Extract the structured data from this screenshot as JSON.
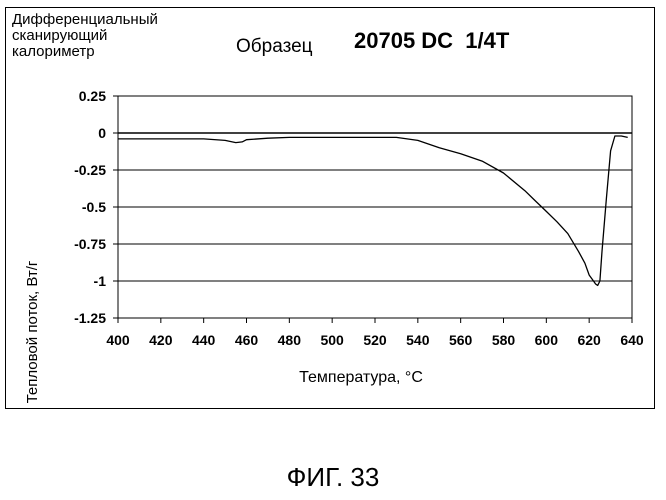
{
  "chart_data": {
    "type": "line",
    "title_lines": [
      "Дифференциальный",
      "сканирующий",
      "калориметр"
    ],
    "sample_label": "Образец",
    "sample_id": "20705 DC  1/4T",
    "xlabel": "Температура, °C",
    "ylabel": "Тепловой поток, Вт/г",
    "xlim": [
      400,
      640
    ],
    "ylim": [
      -1.25,
      0.25
    ],
    "x_ticks": [
      "400",
      "420",
      "440",
      "460",
      "480",
      "500",
      "520",
      "540",
      "560",
      "580",
      "600",
      "620",
      "640"
    ],
    "y_ticks": [
      "0.25",
      "0",
      "-0.25",
      "-0.5",
      "-0.75",
      "-1",
      "-1.25"
    ],
    "grid": "horizontal",
    "reference_line": {
      "y": 0
    },
    "series": [
      {
        "x": [
          400,
          420,
          440,
          450,
          455,
          458,
          460,
          470,
          480,
          500,
          520,
          530,
          540,
          550,
          560,
          570,
          580,
          590,
          595,
          600,
          605,
          610,
          615,
          618,
          620,
          622,
          623,
          624,
          625,
          626,
          628,
          630,
          632,
          635,
          638
        ],
        "y": [
          -0.04,
          -0.04,
          -0.04,
          -0.05,
          -0.065,
          -0.06,
          -0.045,
          -0.035,
          -0.03,
          -0.03,
          -0.03,
          -0.03,
          -0.05,
          -0.1,
          -0.14,
          -0.19,
          -0.27,
          -0.39,
          -0.46,
          -0.53,
          -0.6,
          -0.68,
          -0.8,
          -0.88,
          -0.96,
          -1.0,
          -1.02,
          -1.03,
          -1.0,
          -0.8,
          -0.45,
          -0.12,
          -0.02,
          -0.02,
          -0.03
        ]
      }
    ]
  },
  "figure_caption": "ФИГ. 33"
}
